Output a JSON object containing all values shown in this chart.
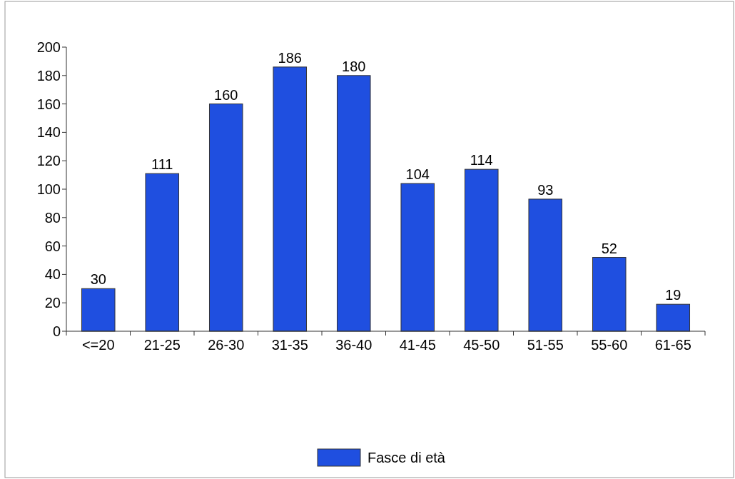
{
  "chart_data": {
    "type": "bar",
    "categories": [
      "<=20",
      "21-25",
      "26-30",
      "31-35",
      "36-40",
      "41-45",
      "45-50",
      "51-55",
      "55-60",
      "61-65"
    ],
    "series": [
      {
        "name": "Fasce di età",
        "color": "#1f4fe0",
        "values": [
          30,
          111,
          160,
          186,
          180,
          104,
          114,
          93,
          52,
          19
        ]
      }
    ],
    "ylim": [
      0,
      200
    ],
    "yticks": [
      0,
      20,
      40,
      60,
      80,
      100,
      120,
      140,
      160,
      180,
      200
    ],
    "data_labels": true,
    "legend": "bottom",
    "grid": false
  }
}
